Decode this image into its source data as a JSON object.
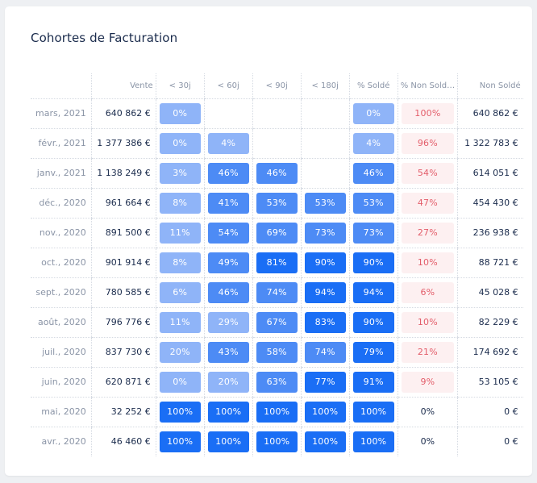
{
  "title": "Cohortes de Facturation",
  "headers": [
    "",
    "Vente",
    "< 30j",
    "< 60j",
    "< 90j",
    "< 180j",
    "% Soldé",
    "% Non Sold…",
    "Non Soldé"
  ],
  "rows": [
    {
      "month": "mars, 2021",
      "vente": "640 862 €",
      "p30": "0%",
      "p60": "",
      "p90": "",
      "p180": "",
      "solde": "0%",
      "non": "100%",
      "nonsolde": "640 862 €"
    },
    {
      "month": "févr., 2021",
      "vente": "1 377 386 €",
      "p30": "0%",
      "p60": "4%",
      "p90": "",
      "p180": "",
      "solde": "4%",
      "non": "96%",
      "nonsolde": "1 322 783 €"
    },
    {
      "month": "janv., 2021",
      "vente": "1 138 249 €",
      "p30": "3%",
      "p60": "46%",
      "p90": "46%",
      "p180": "",
      "solde": "46%",
      "non": "54%",
      "nonsolde": "614 051 €"
    },
    {
      "month": "déc., 2020",
      "vente": "961 664 €",
      "p30": "8%",
      "p60": "41%",
      "p90": "53%",
      "p180": "53%",
      "solde": "53%",
      "non": "47%",
      "nonsolde": "454 430 €"
    },
    {
      "month": "nov., 2020",
      "vente": "891 500 €",
      "p30": "11%",
      "p60": "54%",
      "p90": "69%",
      "p180": "73%",
      "solde": "73%",
      "non": "27%",
      "nonsolde": "236 938 €"
    },
    {
      "month": "oct., 2020",
      "vente": "901 914 €",
      "p30": "8%",
      "p60": "49%",
      "p90": "81%",
      "p180": "90%",
      "solde": "90%",
      "non": "10%",
      "nonsolde": "88 721 €"
    },
    {
      "month": "sept., 2020",
      "vente": "780 585 €",
      "p30": "6%",
      "p60": "46%",
      "p90": "74%",
      "p180": "94%",
      "solde": "94%",
      "non": "6%",
      "nonsolde": "45 028 €"
    },
    {
      "month": "août, 2020",
      "vente": "796 776 €",
      "p30": "11%",
      "p60": "29%",
      "p90": "67%",
      "p180": "83%",
      "solde": "90%",
      "non": "10%",
      "nonsolde": "82 229 €"
    },
    {
      "month": "juil., 2020",
      "vente": "837 730 €",
      "p30": "20%",
      "p60": "43%",
      "p90": "58%",
      "p180": "74%",
      "solde": "79%",
      "non": "21%",
      "nonsolde": "174 692 €"
    },
    {
      "month": "juin, 2020",
      "vente": "620 871 €",
      "p30": "0%",
      "p60": "20%",
      "p90": "63%",
      "p180": "77%",
      "solde": "91%",
      "non": "9%",
      "nonsolde": "53 105 €"
    },
    {
      "month": "mai, 2020",
      "vente": "32 252 €",
      "p30": "100%",
      "p60": "100%",
      "p90": "100%",
      "p180": "100%",
      "solde": "100%",
      "non": "0%",
      "nonsolde": "0 €"
    },
    {
      "month": "avr., 2020",
      "vente": "46 460 €",
      "p30": "100%",
      "p60": "100%",
      "p90": "100%",
      "p180": "100%",
      "solde": "100%",
      "non": "0%",
      "nonsolde": "0 €"
    }
  ],
  "colors": {
    "blue_light": "#8fb4f8",
    "blue_mid": "#4d8bf5",
    "blue_dark": "#1a6ef5",
    "red_bg": "#fdf0f1",
    "red_text": "#e35d6a"
  }
}
